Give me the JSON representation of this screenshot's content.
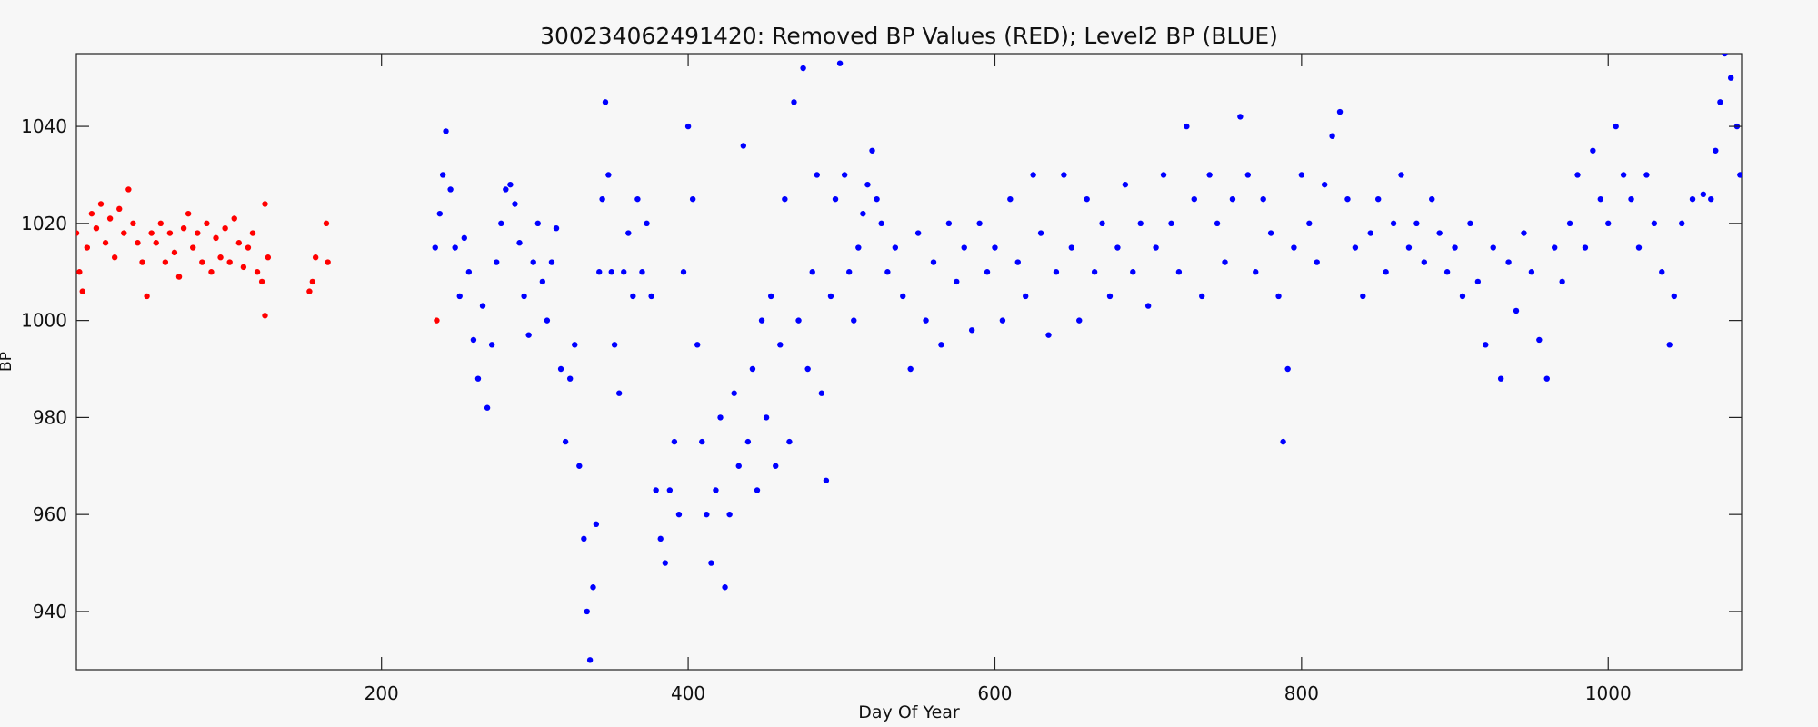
{
  "chart_data": {
    "type": "scatter",
    "title": "300234062491420: Removed BP Values (RED); Level2 BP (BLUE)",
    "x_label": "Day Of Year",
    "y_label": "BP",
    "xlim": [
      1,
      1087
    ],
    "ylim": [
      928,
      1055
    ],
    "xticks": [
      200,
      400,
      600,
      800,
      1000
    ],
    "yticks": [
      940,
      960,
      980,
      1000,
      1020,
      1040
    ],
    "series": [
      {
        "color": "#ff0000",
        "x": [
          1,
          3,
          5,
          8,
          11,
          14,
          17,
          20,
          23,
          26,
          29,
          32,
          35,
          38,
          41,
          44,
          47,
          50,
          53,
          56,
          59,
          62,
          65,
          68,
          71,
          74,
          77,
          80,
          83,
          86,
          89,
          92,
          95,
          98,
          101,
          104,
          107,
          110,
          113,
          116,
          119,
          122,
          124,
          124,
          126,
          153,
          155,
          157,
          164,
          165,
          236
        ],
        "values": [
          1018,
          1010,
          1006,
          1015,
          1022,
          1019,
          1024,
          1016,
          1021,
          1013,
          1023,
          1018,
          1027,
          1020,
          1016,
          1012,
          1005,
          1018,
          1016,
          1020,
          1012,
          1018,
          1014,
          1009,
          1019,
          1022,
          1015,
          1018,
          1012,
          1020,
          1010,
          1017,
          1013,
          1019,
          1012,
          1021,
          1016,
          1011,
          1015,
          1018,
          1010,
          1008,
          1024,
          1001,
          1013,
          1006,
          1008,
          1013,
          1020,
          1012,
          1000
        ]
      },
      {
        "color": "#0000ff",
        "x": [
          235,
          238,
          240,
          242,
          245,
          248,
          251,
          254,
          257,
          260,
          263,
          266,
          269,
          272,
          275,
          278,
          281,
          284,
          287,
          290,
          293,
          296,
          299,
          302,
          305,
          308,
          311,
          314,
          317,
          320,
          323,
          326,
          329,
          332,
          334,
          336,
          338,
          340,
          342,
          344,
          346,
          348,
          350,
          352,
          355,
          358,
          361,
          364,
          367,
          370,
          373,
          376,
          379,
          382,
          385,
          388,
          391,
          394,
          397,
          400,
          403,
          406,
          409,
          412,
          415,
          418,
          421,
          424,
          427,
          430,
          433,
          436,
          439,
          442,
          445,
          448,
          451,
          454,
          457,
          460,
          463,
          466,
          469,
          472,
          475,
          478,
          481,
          484,
          487,
          490,
          493,
          496,
          499,
          502,
          505,
          508,
          511,
          514,
          517,
          520,
          523,
          526,
          530,
          535,
          540,
          545,
          550,
          555,
          560,
          565,
          570,
          575,
          580,
          585,
          590,
          595,
          600,
          605,
          610,
          615,
          620,
          625,
          630,
          635,
          640,
          645,
          650,
          655,
          660,
          665,
          670,
          675,
          680,
          685,
          690,
          695,
          700,
          705,
          710,
          715,
          720,
          725,
          730,
          735,
          740,
          745,
          750,
          755,
          760,
          765,
          770,
          775,
          780,
          785,
          788,
          791,
          795,
          800,
          805,
          810,
          815,
          820,
          825,
          830,
          835,
          840,
          845,
          850,
          855,
          860,
          865,
          870,
          875,
          880,
          885,
          890,
          895,
          900,
          905,
          910,
          915,
          920,
          925,
          930,
          935,
          940,
          945,
          950,
          955,
          960,
          965,
          970,
          975,
          980,
          985,
          990,
          995,
          1000,
          1005,
          1010,
          1015,
          1020,
          1025,
          1030,
          1035,
          1040,
          1043,
          1048,
          1055,
          1062,
          1067,
          1070,
          1073,
          1076,
          1080,
          1084,
          1086
        ],
        "values": [
          1015,
          1022,
          1030,
          1039,
          1027,
          1015,
          1005,
          1017,
          1010,
          996,
          988,
          1003,
          982,
          995,
          1012,
          1020,
          1027,
          1028,
          1024,
          1016,
          1005,
          997,
          1012,
          1020,
          1008,
          1000,
          1012,
          1019,
          990,
          975,
          988,
          995,
          970,
          955,
          940,
          930,
          945,
          958,
          1010,
          1025,
          1045,
          1030,
          1010,
          995,
          985,
          1010,
          1018,
          1005,
          1025,
          1010,
          1020,
          1005,
          965,
          955,
          950,
          965,
          975,
          960,
          1010,
          1040,
          1025,
          995,
          975,
          960,
          950,
          965,
          980,
          945,
          960,
          985,
          970,
          1036,
          975,
          990,
          965,
          1000,
          980,
          1005,
          970,
          995,
          1025,
          975,
          1045,
          1000,
          1052,
          990,
          1010,
          1030,
          985,
          967,
          1005,
          1025,
          1053,
          1030,
          1010,
          1000,
          1015,
          1022,
          1028,
          1035,
          1025,
          1020,
          1010,
          1015,
          1005,
          990,
          1018,
          1000,
          1012,
          995,
          1020,
          1008,
          1015,
          998,
          1020,
          1010,
          1015,
          1000,
          1025,
          1012,
          1005,
          1030,
          1018,
          997,
          1010,
          1030,
          1015,
          1000,
          1025,
          1010,
          1020,
          1005,
          1015,
          1028,
          1010,
          1020,
          1003,
          1015,
          1030,
          1020,
          1010,
          1040,
          1025,
          1005,
          1030,
          1020,
          1012,
          1025,
          1042,
          1030,
          1010,
          1025,
          1018,
          1005,
          975,
          990,
          1015,
          1030,
          1020,
          1012,
          1028,
          1038,
          1043,
          1025,
          1015,
          1005,
          1018,
          1025,
          1010,
          1020,
          1030,
          1015,
          1020,
          1012,
          1025,
          1018,
          1010,
          1015,
          1005,
          1020,
          1008,
          995,
          1015,
          988,
          1012,
          1002,
          1018,
          1010,
          996,
          988,
          1015,
          1008,
          1020,
          1030,
          1015,
          1035,
          1025,
          1020,
          1040,
          1030,
          1025,
          1015,
          1030,
          1020,
          1010,
          995,
          1005,
          1020,
          1025,
          1026,
          1025,
          1035,
          1045,
          1055,
          1050,
          1040,
          1030
        ]
      }
    ]
  }
}
